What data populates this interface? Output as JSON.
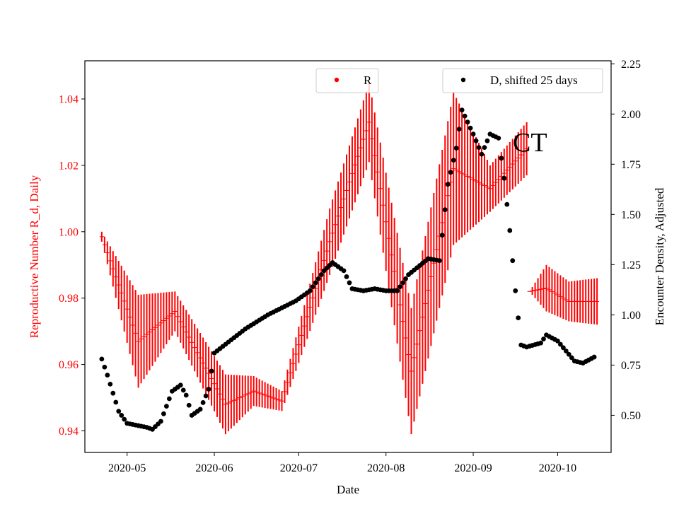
{
  "colors": {
    "r_series": "#ff0000",
    "d_series": "#000000",
    "axes": "#000000",
    "legend_border": "#cccccc"
  },
  "chart_data": {
    "type": "scatter",
    "title": "",
    "annotation": "CT",
    "xlabel": "Date",
    "ylabel_left": "Reproductive Number R_d, Daily",
    "ylabel_right": "Encounter Density, Adjusted",
    "xlim": [
      "2020-04-16",
      "2020-10-20"
    ],
    "ylim_left": [
      0.9335,
      1.0515
    ],
    "ylim_right": [
      0.315,
      2.265
    ],
    "x_ticks": [
      "2020-05-01",
      "2020-06-01",
      "2020-07-01",
      "2020-08-01",
      "2020-09-01",
      "2020-10-01"
    ],
    "x_tick_labels": [
      "2020-05",
      "2020-06",
      "2020-07",
      "2020-08",
      "2020-09",
      "2020-10"
    ],
    "y_left_ticks": [
      0.94,
      0.96,
      0.98,
      1.0,
      1.02,
      1.04
    ],
    "y_left_tick_labels": [
      "0.94",
      "0.96",
      "0.98",
      "1.00",
      "1.02",
      "1.04"
    ],
    "y_right_ticks": [
      0.5,
      0.75,
      1.0,
      1.25,
      1.5,
      1.75,
      2.0,
      2.25
    ],
    "y_right_tick_labels": [
      "0.50",
      "0.75",
      "1.00",
      "1.25",
      "1.50",
      "1.75",
      "2.00",
      "2.25"
    ],
    "grid": false,
    "legend": [
      {
        "label": "R",
        "placement": "top-center"
      },
      {
        "label": "D, shifted 25 days",
        "placement": "top-right"
      }
    ],
    "series": [
      {
        "name": "R",
        "axis": "left",
        "error_bars": true,
        "segment_1": {
          "x_start": "2020-04-22",
          "x_end": "2020-09-20",
          "x_knots": [
            "2020-04-22",
            "2020-05-05",
            "2020-05-18",
            "2020-06-05",
            "2020-06-15",
            "2020-06-25",
            "2020-07-12",
            "2020-07-26",
            "2020-08-10",
            "2020-08-25",
            "2020-09-07",
            "2020-09-20"
          ],
          "y_knots": [
            0.9985,
            0.967,
            0.976,
            0.948,
            0.952,
            0.949,
            0.997,
            1.033,
            0.958,
            1.019,
            1.013,
            1.025
          ],
          "halfwidth_knots": [
            0.0015,
            0.014,
            0.006,
            0.009,
            0.0045,
            0.003,
            0.01,
            0.012,
            0.019,
            0.023,
            0.007,
            0.008
          ]
        },
        "segment_2": {
          "x_start": "2020-09-21",
          "x_end": "2020-10-15",
          "x_knots": [
            "2020-09-21",
            "2020-09-27",
            "2020-10-05",
            "2020-10-15"
          ],
          "y_knots": [
            0.982,
            0.983,
            0.979,
            0.979
          ],
          "halfwidth_knots": [
            0.0,
            0.007,
            0.006,
            0.007
          ]
        }
      },
      {
        "name": "D, shifted 25 days",
        "axis": "right",
        "x_start": "2020-04-22",
        "x_end": "2020-10-14",
        "x_knots": [
          "2020-04-22",
          "2020-04-24",
          "2020-04-28",
          "2020-05-01",
          "2020-05-08",
          "2020-05-10",
          "2020-05-13",
          "2020-05-17",
          "2020-05-20",
          "2020-05-22",
          "2020-05-24",
          "2020-05-27",
          "2020-05-30",
          "2020-06-01",
          "2020-06-12",
          "2020-06-20",
          "2020-06-30",
          "2020-07-05",
          "2020-07-10",
          "2020-07-13",
          "2020-07-17",
          "2020-07-20",
          "2020-07-24",
          "2020-07-28",
          "2020-08-01",
          "2020-08-05",
          "2020-08-09",
          "2020-08-16",
          "2020-08-20",
          "2020-08-23",
          "2020-08-26",
          "2020-08-28",
          "2020-09-01",
          "2020-09-04",
          "2020-09-07",
          "2020-09-10",
          "2020-09-12",
          "2020-09-14",
          "2020-09-16",
          "2020-09-18",
          "2020-09-20",
          "2020-09-25",
          "2020-09-27",
          "2020-10-01",
          "2020-10-04",
          "2020-10-07",
          "2020-10-10",
          "2020-10-14"
        ],
        "y_knots": [
          0.78,
          0.7,
          0.52,
          0.46,
          0.44,
          0.43,
          0.47,
          0.62,
          0.65,
          0.6,
          0.5,
          0.53,
          0.63,
          0.81,
          0.93,
          1.0,
          1.07,
          1.12,
          1.22,
          1.26,
          1.22,
          1.13,
          1.12,
          1.13,
          1.12,
          1.12,
          1.2,
          1.28,
          1.27,
          1.65,
          1.83,
          2.02,
          1.9,
          1.8,
          1.9,
          1.88,
          1.68,
          1.42,
          1.12,
          0.85,
          0.84,
          0.86,
          0.9,
          0.87,
          0.82,
          0.77,
          0.76,
          0.79
        ]
      }
    ]
  }
}
